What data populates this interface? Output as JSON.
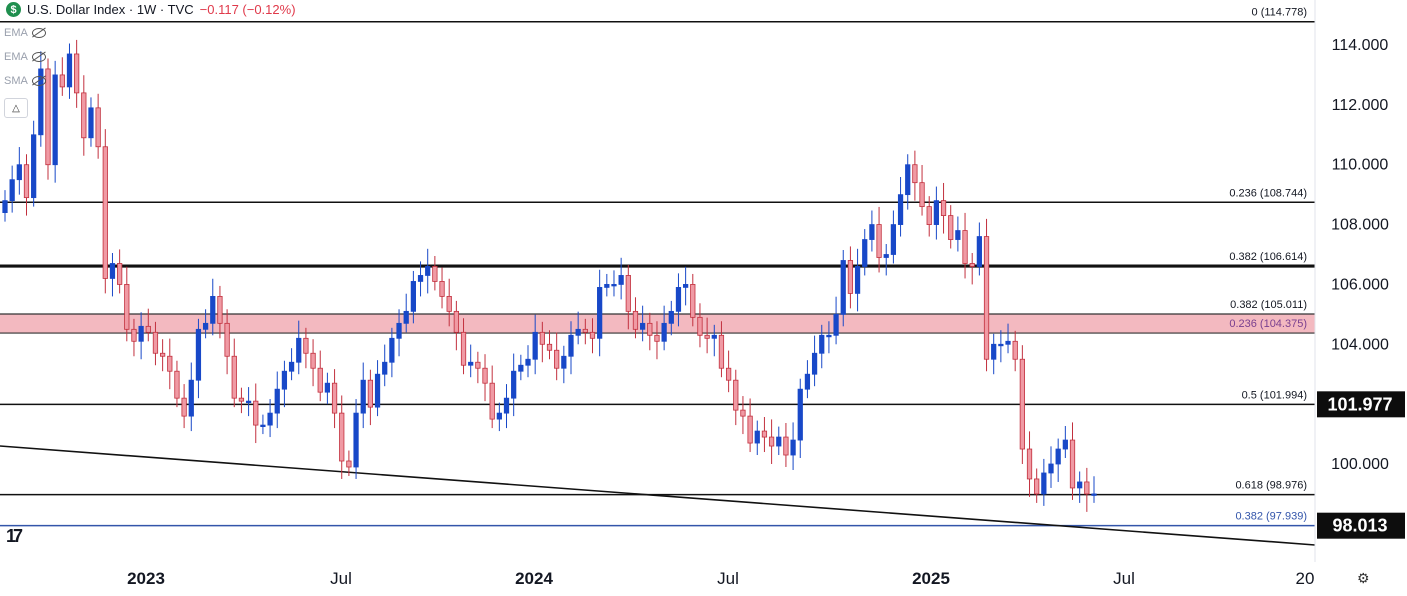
{
  "header": {
    "logo_letter": "$",
    "title": "U.S. Dollar Index · 1W · TVC",
    "change": "−0.117 (−0.12%)"
  },
  "indicators": [
    {
      "label": "EMA",
      "icon": "eye-crossed-icon"
    },
    {
      "label": "EMA",
      "icon": "eye-crossed-icon"
    },
    {
      "label": "SMA",
      "icon": "eye-crossed-icon"
    }
  ],
  "collapse_icon": "chevron-up-icon",
  "settings_icon": "gear-icon",
  "tv_logo_text": "17",
  "colors": {
    "up": "#1848c8",
    "down": "#f09aa4",
    "down_border": "#c2303e",
    "zone": "#f2b1b9",
    "support": "#3355aa"
  },
  "chart_data": {
    "type": "candlestick",
    "title": "U.S. Dollar Index · 1W · TVC",
    "x_labels": [
      "2023",
      "Jul",
      "2024",
      "Jul",
      "2025",
      "Jul",
      "20"
    ],
    "ylim": [
      97.0,
      115.0
    ],
    "y_ticks": [
      "100.000",
      "102.000",
      "104.000",
      "106.000",
      "108.000",
      "110.000",
      "112.000",
      "114.000"
    ],
    "price_badges": [
      "101.977",
      "98.013"
    ],
    "fib_levels": [
      {
        "label": "0 (114.778)",
        "value": 114.778,
        "style": "normal"
      },
      {
        "label": "0.236 (108.744)",
        "value": 108.744,
        "style": "normal"
      },
      {
        "label": "0.382 (106.614)",
        "value": 106.614,
        "style": "bold"
      },
      {
        "label": "0.382 (105.011)",
        "value": 105.011,
        "style": "zone-top"
      },
      {
        "label": "0.236 (104.375)",
        "value": 104.375,
        "style": "zone-bottom"
      },
      {
        "label": "0.5 (101.994)",
        "value": 101.994,
        "style": "normal"
      },
      {
        "label": "0.618 (98.976)",
        "value": 98.976,
        "style": "normal"
      },
      {
        "label": "0.382 (97.939)",
        "value": 97.939,
        "style": "support"
      }
    ],
    "trendline": {
      "from": [
        "2022-06",
        100.6
      ],
      "to": [
        "2025-08",
        97.4
      ]
    },
    "closes": [
      108.8,
      109.5,
      110.0,
      108.9,
      111.0,
      113.2,
      110.0,
      113.0,
      112.6,
      113.7,
      112.4,
      110.9,
      111.9,
      110.6,
      106.2,
      106.7,
      106.0,
      104.5,
      104.1,
      104.6,
      104.4,
      103.7,
      103.6,
      103.1,
      102.2,
      101.6,
      102.8,
      104.5,
      104.7,
      105.6,
      104.7,
      103.6,
      102.2,
      102.1,
      102.1,
      101.3,
      101.3,
      101.7,
      102.5,
      103.1,
      103.4,
      104.2,
      103.7,
      103.2,
      102.4,
      102.7,
      101.7,
      100.1,
      99.9,
      101.7,
      102.8,
      101.9,
      103.0,
      103.4,
      104.2,
      104.7,
      105.1,
      106.1,
      106.3,
      106.6,
      106.1,
      105.6,
      105.1,
      104.4,
      103.3,
      103.4,
      103.2,
      102.7,
      101.5,
      101.7,
      102.2,
      103.1,
      103.3,
      103.5,
      104.4,
      104.0,
      103.8,
      103.2,
      103.6,
      104.3,
      104.5,
      104.4,
      104.2,
      105.9,
      106.0,
      106.0,
      106.3,
      105.1,
      104.5,
      104.7,
      104.3,
      104.1,
      104.7,
      105.1,
      105.9,
      106.0,
      104.9,
      104.3,
      104.2,
      104.3,
      103.2,
      102.8,
      101.8,
      101.6,
      100.7,
      101.1,
      100.9,
      100.6,
      100.9,
      100.3,
      100.8,
      102.5,
      103.0,
      103.7,
      104.3,
      104.3,
      105.0,
      106.8,
      105.7,
      106.6,
      107.5,
      108.0,
      106.9,
      107.0,
      108.0,
      109.0,
      110.0,
      109.4,
      108.6,
      108.0,
      108.8,
      108.3,
      107.5,
      107.8,
      106.7,
      106.6,
      107.6,
      103.5,
      104.0,
      104.0,
      104.1,
      103.5,
      100.5,
      99.5,
      99.0,
      99.7,
      100.0,
      100.5,
      100.8,
      99.2,
      99.4,
      99.0,
      99.0
    ],
    "last_price": 98.94,
    "last_change": "−0.117 (−0.12%)"
  }
}
